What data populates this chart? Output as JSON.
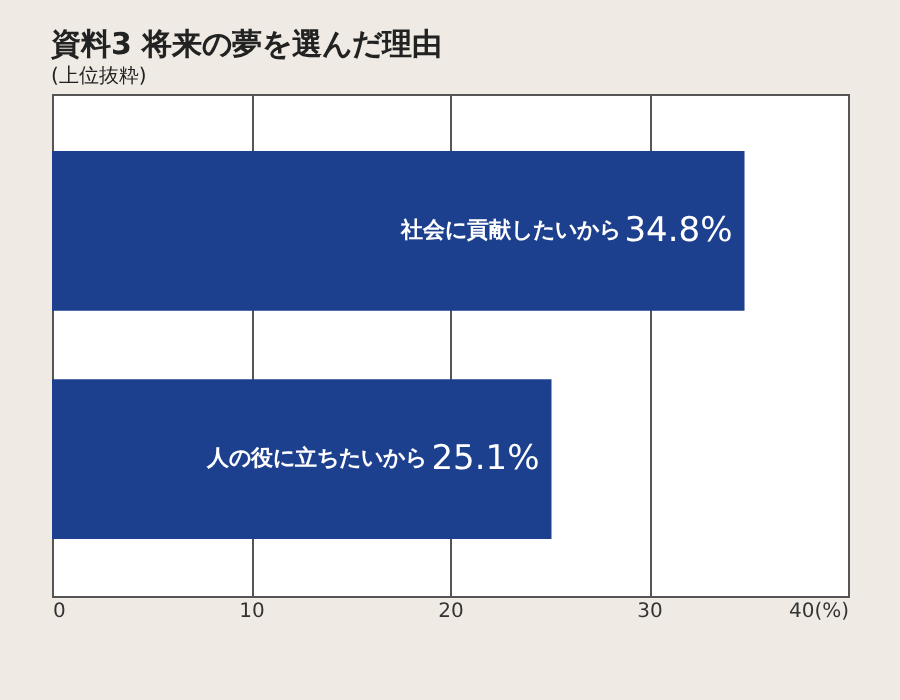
{
  "chart_data": {
    "type": "bar",
    "orientation": "horizontal",
    "title": "資料3 将来の夢を選んだ理由",
    "subtitle": "(上位抜粋)",
    "categories": [
      "社会に貢献したいから",
      "人の役に立ちたいから"
    ],
    "values": [
      34.8,
      25.1
    ],
    "value_labels": [
      "34.8%",
      "25.1%"
    ],
    "color": "#1c3f8e",
    "xlim": [
      0,
      40
    ],
    "xticks": [
      0,
      10,
      20,
      30,
      {
        "value": 40,
        "label": "40(%)"
      }
    ],
    "grid": "x"
  }
}
